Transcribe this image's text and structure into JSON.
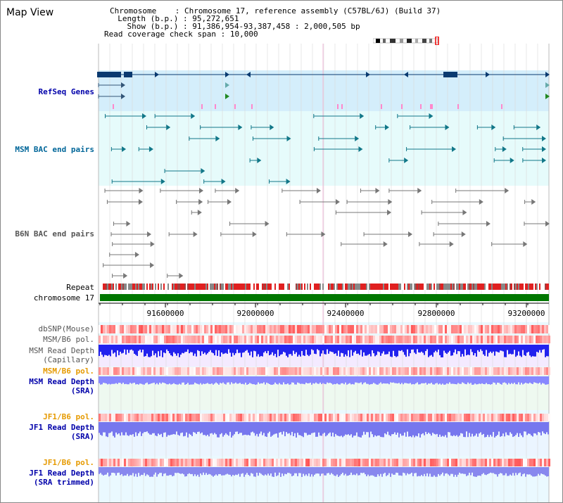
{
  "app": {
    "title": "Map View"
  },
  "info": {
    "chromosome_label": "Chromosome",
    "chromosome_value": "Chromosome 17, reference assembly (C57BL/6J) (Build 37)",
    "length_label": "Length (b.p.)",
    "length_value": "95,272,651",
    "show_label": "Show (b.p.)",
    "show_value": "91,386,954-93,387,458 : 2,000,505 bp",
    "coverage_label": "Read coverage check span",
    "coverage_value": "10,000"
  },
  "tracks": {
    "refseq": "RefSeq Genes",
    "msm_bac": "MSM BAC end pairs",
    "b6n_bac": "B6N BAC end pairs",
    "repeat": "Repeat",
    "chromosome": "chromosome 17",
    "dbsnp": "dbSNP(Mouse)",
    "msm_b6_pol": "MSM/B6 pol.",
    "msm_depth_cap_1": "MSM Read Depth",
    "msm_depth_cap_2": "(Capillary)",
    "msm_b6_pol2": "MSM/B6 pol.",
    "msm_depth_sra_1": "MSM Read Depth",
    "msm_depth_sra_2": "(SRA)",
    "jf1_b6_pol": "JF1/B6 pol.",
    "jf1_depth_sra_1": "JF1 Read Depth",
    "jf1_depth_sra_2": "(SRA)",
    "jf1_b6_pol2": "JF1/B6 pol.",
    "jf1_depth_trim_1": "JF1 Read Depth",
    "jf1_depth_trim_2": "(SRA trimmed)"
  },
  "axis": {
    "ticks": [
      "91600000",
      "92000000",
      "92400000",
      "92800000",
      "93200000"
    ]
  },
  "colors": {
    "refseq_label": "#0000aa",
    "msm_label": "#006699",
    "b6n_label": "#555555",
    "pol_orange": "#e69a00",
    "depth_blue": "#0000aa",
    "chromosome_bar": "#007700",
    "refseq_bg": "#d4eefb",
    "msm_bg": "#e0fafa",
    "depth_bg": "#e8f6ff"
  }
}
